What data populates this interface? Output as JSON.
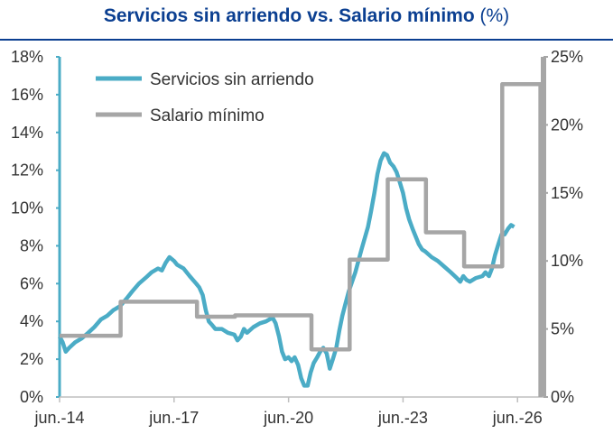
{
  "title": {
    "main": "Servicios sin arriendo vs. Salario mínimo",
    "unit": "(%)"
  },
  "colors": {
    "title": "#0b3f91",
    "series_services": "#4bacc6",
    "series_wage": "#a6a6a6",
    "axis_left": "#4bacc6",
    "axis_right": "#a6a6a6"
  },
  "chart_data": {
    "type": "line",
    "title": "Servicios sin arriendo vs. Salario mínimo (%)",
    "xlabel": "",
    "ylabel": "",
    "x_ticks": [
      "jun.-14",
      "jun.-17",
      "jun.-20",
      "jun.-23",
      "jun.-26"
    ],
    "x_tick_values": [
      2014.42,
      2017.42,
      2020.42,
      2023.42,
      2026.42
    ],
    "xlim": [
      2014.42,
      2027.1
    ],
    "y_left": {
      "ticks": [
        "0%",
        "2%",
        "4%",
        "6%",
        "8%",
        "10%",
        "12%",
        "14%",
        "16%",
        "18%"
      ],
      "ylim": [
        0,
        18
      ]
    },
    "y_right": {
      "ticks": [
        "0%",
        "5%",
        "10%",
        "15%",
        "20%",
        "25%"
      ],
      "ylim": [
        0,
        25
      ]
    },
    "grid": false,
    "legend_position": "top-left",
    "series": [
      {
        "name": "Servicios sin arriendo",
        "axis": "left",
        "points": [
          [
            2014.42,
            3.2
          ],
          [
            2014.5,
            2.9
          ],
          [
            2014.58,
            2.4
          ],
          [
            2014.67,
            2.6
          ],
          [
            2014.83,
            2.9
          ],
          [
            2015.0,
            3.1
          ],
          [
            2015.17,
            3.4
          ],
          [
            2015.33,
            3.7
          ],
          [
            2015.5,
            4.1
          ],
          [
            2015.67,
            4.3
          ],
          [
            2015.83,
            4.6
          ],
          [
            2016.0,
            4.8
          ],
          [
            2016.17,
            5.2
          ],
          [
            2016.33,
            5.6
          ],
          [
            2016.5,
            6.0
          ],
          [
            2016.67,
            6.3
          ],
          [
            2016.83,
            6.6
          ],
          [
            2017.0,
            6.8
          ],
          [
            2017.1,
            6.7
          ],
          [
            2017.2,
            7.1
          ],
          [
            2017.3,
            7.4
          ],
          [
            2017.42,
            7.2
          ],
          [
            2017.5,
            7.0
          ],
          [
            2017.67,
            6.8
          ],
          [
            2017.83,
            6.4
          ],
          [
            2018.0,
            6.0
          ],
          [
            2018.08,
            5.8
          ],
          [
            2018.17,
            5.4
          ],
          [
            2018.25,
            4.6
          ],
          [
            2018.33,
            4.0
          ],
          [
            2018.42,
            3.8
          ],
          [
            2018.5,
            3.6
          ],
          [
            2018.67,
            3.6
          ],
          [
            2018.83,
            3.4
          ],
          [
            2019.0,
            3.3
          ],
          [
            2019.08,
            3.0
          ],
          [
            2019.17,
            3.2
          ],
          [
            2019.25,
            3.6
          ],
          [
            2019.33,
            3.4
          ],
          [
            2019.5,
            3.7
          ],
          [
            2019.67,
            3.9
          ],
          [
            2019.83,
            4.0
          ],
          [
            2020.0,
            4.2
          ],
          [
            2020.08,
            3.9
          ],
          [
            2020.17,
            3.2
          ],
          [
            2020.25,
            2.4
          ],
          [
            2020.33,
            2.0
          ],
          [
            2020.42,
            2.1
          ],
          [
            2020.5,
            1.9
          ],
          [
            2020.58,
            2.1
          ],
          [
            2020.67,
            1.7
          ],
          [
            2020.75,
            1.0
          ],
          [
            2020.83,
            0.6
          ],
          [
            2020.92,
            0.6
          ],
          [
            2021.0,
            1.3
          ],
          [
            2021.08,
            1.8
          ],
          [
            2021.17,
            2.1
          ],
          [
            2021.25,
            2.4
          ],
          [
            2021.33,
            2.6
          ],
          [
            2021.42,
            2.3
          ],
          [
            2021.5,
            1.5
          ],
          [
            2021.58,
            2.0
          ],
          [
            2021.67,
            2.6
          ],
          [
            2021.75,
            3.5
          ],
          [
            2021.83,
            4.3
          ],
          [
            2021.92,
            5.0
          ],
          [
            2022.0,
            5.6
          ],
          [
            2022.17,
            6.6
          ],
          [
            2022.33,
            7.8
          ],
          [
            2022.5,
            9.0
          ],
          [
            2022.58,
            9.8
          ],
          [
            2022.67,
            10.8
          ],
          [
            2022.75,
            11.8
          ],
          [
            2022.83,
            12.5
          ],
          [
            2022.92,
            12.9
          ],
          [
            2023.0,
            12.8
          ],
          [
            2023.08,
            12.4
          ],
          [
            2023.17,
            12.2
          ],
          [
            2023.25,
            11.9
          ],
          [
            2023.33,
            11.4
          ],
          [
            2023.42,
            10.8
          ],
          [
            2023.5,
            10.0
          ],
          [
            2023.58,
            9.4
          ],
          [
            2023.67,
            8.9
          ],
          [
            2023.75,
            8.5
          ],
          [
            2023.83,
            8.1
          ],
          [
            2023.92,
            7.8
          ],
          [
            2024.0,
            7.7
          ],
          [
            2024.17,
            7.4
          ],
          [
            2024.33,
            7.2
          ],
          [
            2024.5,
            6.9
          ],
          [
            2024.67,
            6.6
          ],
          [
            2024.83,
            6.3
          ],
          [
            2024.92,
            6.1
          ],
          [
            2025.0,
            6.4
          ],
          [
            2025.08,
            6.2
          ],
          [
            2025.17,
            6.1
          ],
          [
            2025.33,
            6.3
          ],
          [
            2025.5,
            6.4
          ],
          [
            2025.58,
            6.6
          ],
          [
            2025.67,
            6.4
          ],
          [
            2025.75,
            6.8
          ],
          [
            2025.83,
            7.5
          ],
          [
            2025.92,
            8.1
          ],
          [
            2026.0,
            8.6
          ],
          [
            2026.08,
            8.6
          ],
          [
            2026.17,
            8.9
          ],
          [
            2026.25,
            9.1
          ],
          [
            2026.33,
            9.0
          ]
        ]
      },
      {
        "name": "Salario mínimo",
        "axis": "right",
        "points": [
          [
            2014.42,
            4.5
          ],
          [
            2016.02,
            4.5
          ],
          [
            2016.02,
            7.0
          ],
          [
            2018.02,
            7.0
          ],
          [
            2018.02,
            5.9
          ],
          [
            2019.02,
            5.9
          ],
          [
            2019.02,
            6.0
          ],
          [
            2021.02,
            6.0
          ],
          [
            2021.02,
            3.5
          ],
          [
            2022.02,
            3.5
          ],
          [
            2022.02,
            10.1
          ],
          [
            2023.02,
            10.1
          ],
          [
            2023.02,
            16.0
          ],
          [
            2024.02,
            16.0
          ],
          [
            2024.02,
            12.1
          ],
          [
            2025.02,
            12.1
          ],
          [
            2025.02,
            9.6
          ],
          [
            2026.02,
            9.6
          ],
          [
            2026.02,
            23.0
          ],
          [
            2027.02,
            23.0
          ],
          [
            2027.02,
            0.0
          ]
        ]
      }
    ]
  }
}
